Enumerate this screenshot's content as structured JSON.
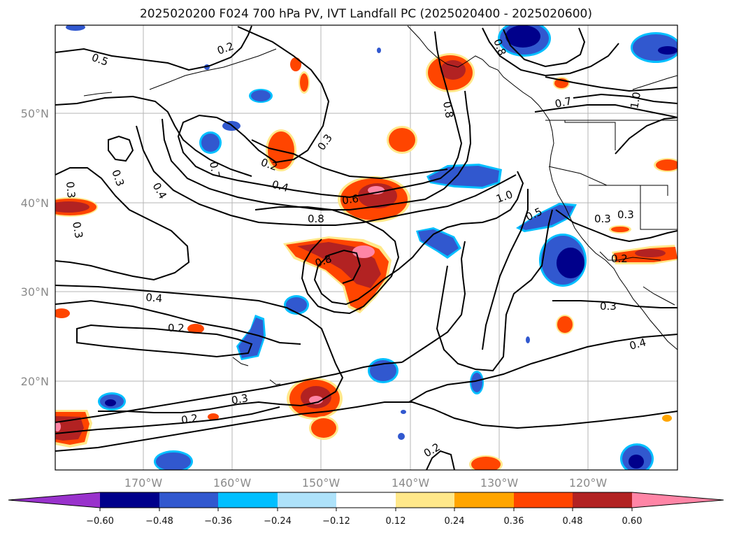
{
  "title": "2025020200 F024 700 hPa PV, IVT Landfall PC (2025020400 - 2025020600)",
  "map": {
    "lat_labels": [
      "50°N",
      "40°N",
      "30°N",
      "20°N"
    ],
    "lon_labels": [
      "170°W",
      "160°W",
      "150°W",
      "140°W",
      "130°W",
      "120°W"
    ],
    "contour_labels": [
      "0.5",
      "0.2",
      "0.7",
      "0.3",
      "0.4",
      "0.2",
      "0.3",
      "0.4",
      "0.6",
      "0.8",
      "0.8",
      "1.0",
      "0.8",
      "0.7",
      "1.0",
      "0.5",
      "0.3",
      "0.3",
      "0.3",
      "0.8",
      "0.4",
      "0.2",
      "0.3",
      "0.2",
      "0.2",
      "0.3",
      "0.4",
      "0.2",
      "0.3"
    ]
  },
  "colorbar": {
    "tick_labels": [
      "−0.60",
      "−0.48",
      "−0.36",
      "−0.24",
      "−0.12",
      "0.12",
      "0.24",
      "0.36",
      "0.48",
      "0.60"
    ],
    "colors": [
      "#9932cc",
      "#00008b",
      "#3158cf",
      "#00bfff",
      "#aee2fa",
      "#ffffff",
      "#ffe88a",
      "#ffa500",
      "#ff4500",
      "#b22222",
      "#ff85a6"
    ]
  },
  "fill_colors": {
    "neg_light": "#00bfff",
    "neg_mid": "#3158cf",
    "neg_dark": "#00008b",
    "pos_light": "#ffe88a",
    "pos_orange": "#ffa500",
    "pos_red": "#ff4500",
    "pos_dark": "#b22222",
    "pos_pink": "#ff85a6"
  }
}
